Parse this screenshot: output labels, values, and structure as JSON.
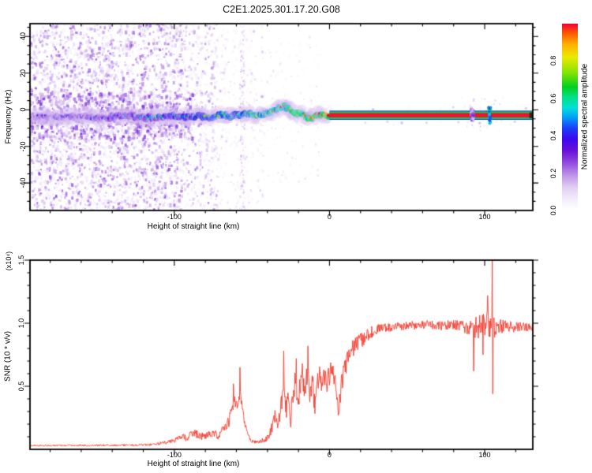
{
  "title": "C2E1.2025.301.17.20.G08",
  "colorbar": {
    "label": "Normalized spectral amplitude",
    "ticks": [
      {
        "v": 0.0,
        "label": "0.0"
      },
      {
        "v": 0.2,
        "label": "0.2"
      },
      {
        "v": 0.4,
        "label": "0.4"
      },
      {
        "v": 0.6,
        "label": "0.6"
      },
      {
        "v": 0.8,
        "label": "0.8"
      }
    ],
    "stops": [
      [
        0.0,
        "#ffffff"
      ],
      [
        0.05,
        "#f6f0fc"
      ],
      [
        0.12,
        "#e3d1f4"
      ],
      [
        0.19,
        "#bd93e8"
      ],
      [
        0.26,
        "#8f45dc"
      ],
      [
        0.32,
        "#6a10d8"
      ],
      [
        0.38,
        "#3c08ee"
      ],
      [
        0.44,
        "#1c3cf8"
      ],
      [
        0.5,
        "#00a0f8"
      ],
      [
        0.55,
        "#00e0d8"
      ],
      [
        0.61,
        "#00e080"
      ],
      [
        0.66,
        "#00d020"
      ],
      [
        0.74,
        "#86e400"
      ],
      [
        0.82,
        "#eaea00"
      ],
      [
        0.89,
        "#ffb000"
      ],
      [
        0.95,
        "#ff5500"
      ],
      [
        1.0,
        "#ef0038"
      ]
    ]
  },
  "chart_data": [
    {
      "type": "heatmap",
      "title": "",
      "xlabel": "Height of straight line (km)",
      "ylabel": "Frequency (Hz)",
      "xlim": [
        -193,
        131
      ],
      "ylim": [
        -55,
        47
      ],
      "xticks": [
        {
          "v": -100,
          "label": "-100"
        },
        {
          "v": 0,
          "label": "0"
        },
        {
          "v": 100,
          "label": "100"
        }
      ],
      "yticks": [
        {
          "v": 40,
          "label": "40"
        },
        {
          "v": 20,
          "label": "20"
        },
        {
          "v": 0,
          "label": "0"
        },
        {
          "v": -20,
          "label": "-20"
        },
        {
          "v": -40,
          "label": "-40"
        }
      ],
      "x_minor_step": 20,
      "y_minor_step": 5,
      "noise_regions": [
        {
          "km": [
            -193,
            -95
          ],
          "hz": [
            -55,
            47
          ],
          "count": 3200,
          "t": [
            0.05,
            0.3
          ],
          "skew": 1.7,
          "size": [
            1.5,
            3.5
          ],
          "alpha": 0.7
        },
        {
          "km": [
            -193,
            -88
          ],
          "hz": [
            -16,
            9
          ],
          "count": 650,
          "t": [
            0.08,
            0.36
          ],
          "skew": 1.3,
          "size": [
            2.0,
            4.0
          ],
          "alpha": 0.75
        },
        {
          "km": [
            -95,
            -72
          ],
          "hz": [
            -55,
            47
          ],
          "count": 520,
          "t": [
            0.05,
            0.26
          ],
          "skew": 1.8,
          "size": [
            1.5,
            3.2
          ],
          "alpha": 0.65
        },
        {
          "km": [
            -72,
            -42
          ],
          "hz": [
            -55,
            47
          ],
          "count": 300,
          "t": [
            0.04,
            0.2
          ],
          "skew": 2.0,
          "size": [
            1.2,
            2.8
          ],
          "alpha": 0.6
        },
        {
          "km": [
            -42,
            -6
          ],
          "hz": [
            -40,
            40
          ],
          "count": 150,
          "t": [
            0.04,
            0.16
          ],
          "skew": 2.0,
          "size": [
            1.0,
            2.5
          ],
          "alpha": 0.55
        },
        {
          "km": [
            -57.8,
            -54.6
          ],
          "hz": [
            -55,
            47
          ],
          "count": 160,
          "t": [
            0.05,
            0.22
          ],
          "skew": 1.5,
          "size": [
            1.2,
            2.6
          ],
          "alpha": 0.6
        },
        {
          "km": [
            2,
            128
          ],
          "hz": [
            -9,
            3
          ],
          "count": 60,
          "t": [
            0.05,
            0.14
          ],
          "skew": 2.0,
          "size": [
            1.0,
            2.2
          ],
          "alpha": 0.5
        },
        {
          "km": [
            84,
            112
          ],
          "hz": [
            -13,
            7
          ],
          "count": 50,
          "t": [
            0.06,
            0.2
          ],
          "skew": 1.6,
          "size": [
            1.2,
            2.6
          ],
          "alpha": 0.6
        }
      ],
      "ridge_range": [
        -193,
        0
      ],
      "ridge_path": [
        [
          -193,
          -3.5
        ],
        [
          -175,
          -4.2
        ],
        [
          -160,
          -3.6
        ],
        [
          -148,
          -4.6
        ],
        [
          -138,
          -3.8
        ],
        [
          -128,
          -3.2
        ],
        [
          -118,
          -4.4
        ],
        [
          -108,
          -4.0
        ],
        [
          -100,
          -3.2
        ],
        [
          -92,
          -4.2
        ],
        [
          -84,
          -3.4
        ],
        [
          -76,
          -4.0
        ],
        [
          -70,
          -2.8
        ],
        [
          -64,
          -3.6
        ],
        [
          -58,
          -2.6
        ],
        [
          -52,
          -2.2
        ],
        [
          -47,
          -3.2
        ],
        [
          -42,
          -2.4
        ],
        [
          -37,
          -1.2
        ],
        [
          -32,
          0.8
        ],
        [
          -29,
          2.2
        ],
        [
          -27,
          1.0
        ],
        [
          -24,
          -0.5
        ],
        [
          -22,
          -2.0
        ],
        [
          -18,
          -2.4
        ],
        [
          -15,
          -3.6
        ],
        [
          -12,
          -4.6
        ],
        [
          -10,
          -3.4
        ],
        [
          -7,
          -2.2
        ],
        [
          -4,
          -2.8
        ],
        [
          0,
          -3.0
        ]
      ],
      "ridge_intensity": [
        [
          -193,
          0.25
        ],
        [
          -150,
          0.3
        ],
        [
          -130,
          0.38
        ],
        [
          -115,
          0.45
        ],
        [
          -100,
          0.5
        ],
        [
          -85,
          0.55
        ],
        [
          -70,
          0.62
        ],
        [
          -55,
          0.66
        ],
        [
          -40,
          0.7
        ],
        [
          -25,
          0.78
        ],
        [
          -15,
          0.82
        ],
        [
          -5,
          0.88
        ],
        [
          0,
          0.95
        ]
      ],
      "stripe": {
        "start_km": 0,
        "center_hz": -3.0,
        "red_hw": 1.2,
        "green_hw": 2.1,
        "blue_hw": 2.5
      },
      "blips": [
        {
          "km": 103.3,
          "hz": [
            -7.5,
            1.5
          ],
          "strength": 0.52
        },
        {
          "km": 92.0,
          "hz": [
            -6.0,
            0.5
          ],
          "strength": 0.2
        }
      ],
      "end_marker": {
        "km": [
          128.8,
          131
        ],
        "hz": [
          -4.6,
          -1.4
        ],
        "color": "#1c2a12"
      }
    },
    {
      "type": "line",
      "title": "",
      "xlabel": "Height of straight line (km)",
      "ylabel": "SNR (10 * v/v)",
      "scale_label": "(x10⁴)",
      "xlim": [
        -193,
        131
      ],
      "ylim": [
        0,
        1.5
      ],
      "xticks": [
        {
          "v": -100,
          "label": "-100"
        },
        {
          "v": 0,
          "label": "0"
        },
        {
          "v": 100,
          "label": "100"
        }
      ],
      "yticks": [
        {
          "v": 0.5,
          "label": "0.5"
        },
        {
          "v": 1.0,
          "label": "1.0"
        },
        {
          "v": 1.5,
          "label": "1.5"
        }
      ],
      "x_minor_step": 20,
      "y_minor_step": 0.1,
      "color": "#f23b2e",
      "sample_step_km": 0.3,
      "base_keypoints": [
        [
          -193,
          0.03
        ],
        [
          -150,
          0.032
        ],
        [
          -120,
          0.035
        ],
        [
          -112,
          0.04
        ],
        [
          -105,
          0.055
        ],
        [
          -100,
          0.07
        ],
        [
          -96,
          0.1
        ],
        [
          -92,
          0.09
        ],
        [
          -88,
          0.13
        ],
        [
          -84,
          0.11
        ],
        [
          -80,
          0.1
        ],
        [
          -76,
          0.13
        ],
        [
          -72,
          0.11
        ],
        [
          -68,
          0.16
        ],
        [
          -65,
          0.22
        ],
        [
          -63,
          0.3
        ],
        [
          -61,
          0.38
        ],
        [
          -59,
          0.3
        ],
        [
          -57.5,
          0.45
        ],
        [
          -56,
          0.3
        ],
        [
          -54,
          0.18
        ],
        [
          -52,
          0.1
        ],
        [
          -50,
          0.07
        ],
        [
          -47,
          0.06
        ],
        [
          -44,
          0.065
        ],
        [
          -41,
          0.08
        ],
        [
          -39,
          0.12
        ],
        [
          -37,
          0.18
        ],
        [
          -35,
          0.26
        ],
        [
          -33,
          0.22
        ],
        [
          -31,
          0.35
        ],
        [
          -29.5,
          0.55
        ],
        [
          -28,
          0.32
        ],
        [
          -26.5,
          0.45
        ],
        [
          -25,
          0.25
        ],
        [
          -23.5,
          0.4
        ],
        [
          -22,
          0.55
        ],
        [
          -20.5,
          0.38
        ],
        [
          -19,
          0.5
        ],
        [
          -17.5,
          0.62
        ],
        [
          -16,
          0.45
        ],
        [
          -14,
          0.6
        ],
        [
          -12.5,
          0.42
        ],
        [
          -11,
          0.55
        ],
        [
          -9.5,
          0.35
        ],
        [
          -8,
          0.5
        ],
        [
          -6.5,
          0.62
        ],
        [
          -5,
          0.48
        ],
        [
          -3.5,
          0.6
        ],
        [
          -2,
          0.52
        ],
        [
          0,
          0.6
        ],
        [
          2,
          0.68
        ],
        [
          4,
          0.5
        ],
        [
          6,
          0.32
        ],
        [
          8,
          0.55
        ],
        [
          10,
          0.66
        ],
        [
          12,
          0.72
        ],
        [
          15,
          0.8
        ],
        [
          18,
          0.84
        ],
        [
          22,
          0.88
        ],
        [
          26,
          0.92
        ],
        [
          30,
          0.95
        ],
        [
          40,
          0.97
        ],
        [
          50,
          0.98
        ],
        [
          60,
          0.99
        ],
        [
          70,
          0.98
        ],
        [
          80,
          0.99
        ],
        [
          88,
          0.97
        ],
        [
          93,
          0.96
        ],
        [
          98,
          0.98
        ],
        [
          103,
          1.0
        ],
        [
          108,
          0.98
        ],
        [
          115,
          0.97
        ],
        [
          122,
          0.97
        ],
        [
          131,
          0.96
        ]
      ],
      "noise_amp_keypoints": [
        [
          -193,
          0.006
        ],
        [
          -115,
          0.008
        ],
        [
          -100,
          0.02
        ],
        [
          -90,
          0.03
        ],
        [
          -70,
          0.035
        ],
        [
          -60,
          0.06
        ],
        [
          -52,
          0.02
        ],
        [
          -45,
          0.015
        ],
        [
          -40,
          0.03
        ],
        [
          -35,
          0.06
        ],
        [
          -30,
          0.09
        ],
        [
          -25,
          0.1
        ],
        [
          -15,
          0.1
        ],
        [
          -5,
          0.09
        ],
        [
          5,
          0.09
        ],
        [
          15,
          0.07
        ],
        [
          25,
          0.05
        ],
        [
          35,
          0.035
        ],
        [
          60,
          0.035
        ],
        [
          85,
          0.04
        ],
        [
          95,
          0.09
        ],
        [
          105,
          0.12
        ],
        [
          112,
          0.05
        ],
        [
          131,
          0.035
        ]
      ],
      "spikes": [
        [
          -62,
          0.52
        ],
        [
          -57.6,
          0.65
        ],
        [
          -29.5,
          0.78
        ],
        [
          -21.5,
          0.72
        ],
        [
          -17.5,
          0.68
        ],
        [
          -14,
          0.82
        ],
        [
          6,
          0.28
        ],
        [
          93,
          0.62
        ],
        [
          99,
          0.75
        ],
        [
          102,
          1.22
        ],
        [
          104.8,
          1.5
        ],
        [
          105.3,
          0.44
        ]
      ]
    }
  ]
}
